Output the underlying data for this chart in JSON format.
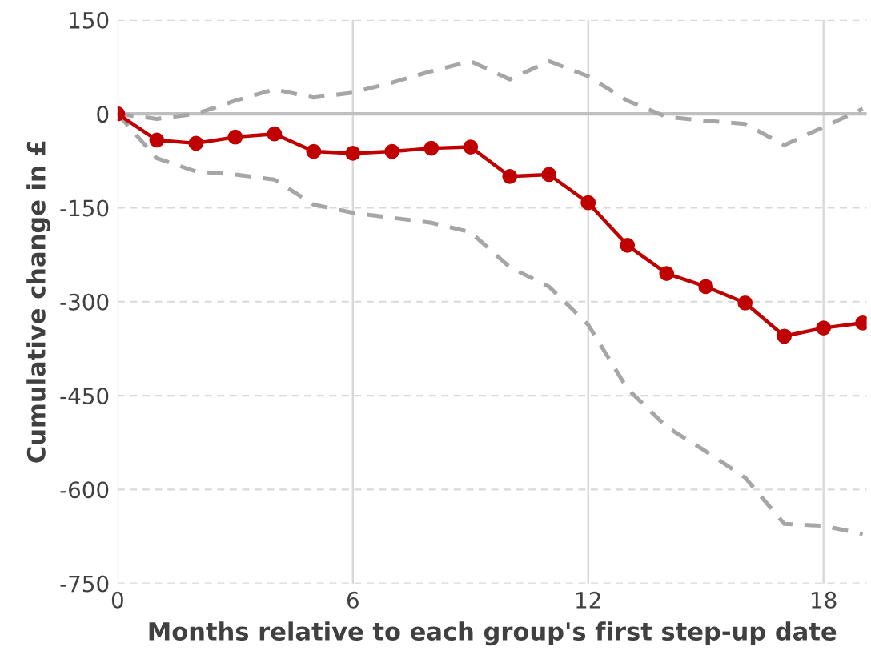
{
  "chart_data": {
    "type": "line",
    "xlabel": "Months relative to each group's first step-up date",
    "ylabel": "Cumulative change in £",
    "x": [
      0,
      1,
      2,
      3,
      4,
      5,
      6,
      7,
      8,
      9,
      10,
      11,
      12,
      13,
      14,
      15,
      16,
      17,
      18,
      19
    ],
    "series": [
      {
        "color": "#a6a6a6",
        "line_style": "dashed",
        "marker": "none",
        "values": [
          0,
          -8,
          0,
          21,
          39,
          26,
          34,
          50,
          68,
          84,
          55,
          84,
          60,
          21,
          -5,
          -11,
          -16,
          -50,
          -21,
          8
        ]
      },
      {
        "color": "#a6a6a6",
        "line_style": "dashed",
        "marker": "none",
        "values": [
          0,
          -71,
          -92,
          -97,
          -105,
          -145,
          -158,
          -166,
          -174,
          -189,
          -245,
          -276,
          -337,
          -439,
          -500,
          -539,
          -581,
          -655,
          -658,
          -671
        ]
      },
      {
        "color": "#c00000",
        "line_style": "solid",
        "marker": "circle",
        "values": [
          0,
          -42,
          -47,
          -37,
          -32,
          -60,
          -63,
          -60,
          -55,
          -53,
          -100,
          -97,
          -142,
          -210,
          -255,
          -276,
          -302,
          -355,
          -342,
          -334
        ]
      }
    ],
    "xlim": [
      0,
      19.1
    ],
    "xticks": [
      0,
      6,
      12,
      18
    ],
    "ylim": [
      -750,
      150
    ],
    "yticks": [
      -750,
      -600,
      -450,
      -300,
      -150,
      0,
      150
    ],
    "ref_lines": [
      {
        "axis": "y",
        "value": 0,
        "color": "#bfbfbf"
      }
    ],
    "grid": true
  }
}
